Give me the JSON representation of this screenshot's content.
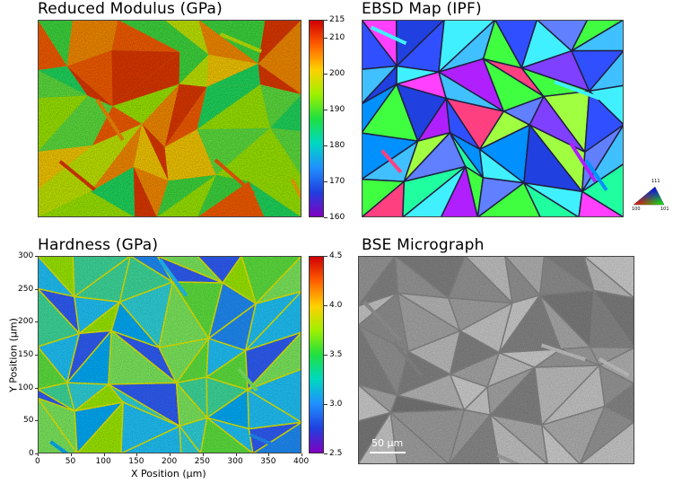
{
  "panels": {
    "modulus": {
      "title": "Reduced Modulus (GPa)",
      "colorbar_ticks": [
        "215",
        "210",
        "200",
        "190",
        "180",
        "170",
        "160"
      ],
      "colorbar_values": [
        215,
        210,
        200,
        190,
        180,
        170,
        160
      ],
      "range": [
        160,
        215
      ]
    },
    "ebsd": {
      "title": "EBSD Map (IPF)",
      "key_labels": {
        "top": "111",
        "left": "100",
        "right": "101"
      }
    },
    "hardness": {
      "title": "Hardness (GPa)",
      "colorbar_ticks": [
        "4.5",
        "4.0",
        "3.5",
        "3.0",
        "2.5"
      ],
      "colorbar_values": [
        4.5,
        4.0,
        3.5,
        3.0,
        2.5
      ],
      "range": [
        2.5,
        4.5
      ],
      "y_ticks": [
        "300",
        "250",
        "200",
        "150",
        "100",
        "50",
        "0"
      ],
      "x_ticks": [
        "0",
        "50",
        "100",
        "150",
        "200",
        "250",
        "300",
        "350",
        "400"
      ],
      "xlabel": "X Position  (µm)",
      "ylabel": "Y Position  (µm)"
    },
    "bse": {
      "title": "BSE Micrograph",
      "scalebar_label": "50 µm"
    }
  },
  "colors": {
    "rainbow": [
      "#d00000",
      "#ff6000",
      "#ffd000",
      "#a0f000",
      "#20e040",
      "#00d8c0",
      "#2090ff",
      "#2040e0",
      "#8000c0"
    ]
  }
}
